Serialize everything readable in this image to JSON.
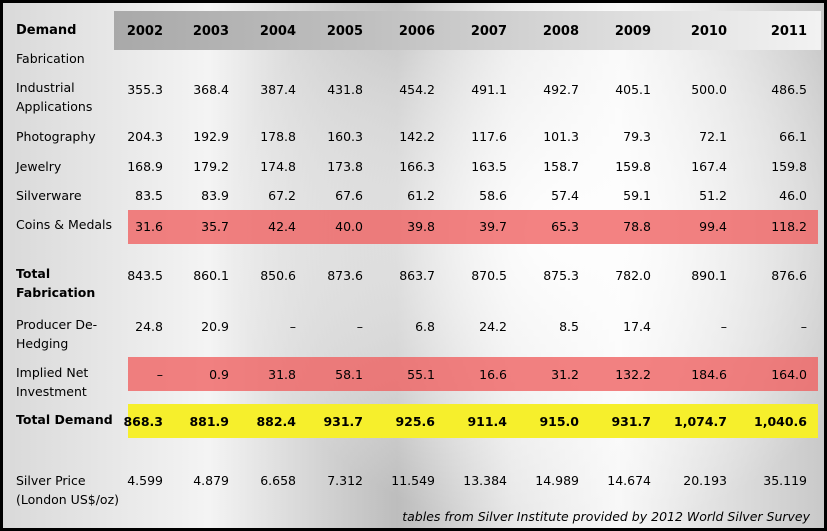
{
  "chart_data": {
    "type": "table",
    "corner_header": "Demand",
    "section_label": "Fabrication",
    "years": [
      "2002",
      "2003",
      "2004",
      "2005",
      "2006",
      "2007",
      "2008",
      "2009",
      "2010",
      "2011"
    ],
    "rows": [
      {
        "label": "Industrial Applications",
        "values": [
          "355.3",
          "368.4",
          "387.4",
          "431.8",
          "454.2",
          "491.1",
          "492.7",
          "405.1",
          "500.0",
          "486.5"
        ]
      },
      {
        "label": "Photography",
        "values": [
          "204.3",
          "192.9",
          "178.8",
          "160.3",
          "142.2",
          "117.6",
          "101.3",
          "79.3",
          "72.1",
          "66.1"
        ]
      },
      {
        "label": "Jewelry",
        "values": [
          "168.9",
          "179.2",
          "174.8",
          "173.8",
          "166.3",
          "163.5",
          "158.7",
          "159.8",
          "167.4",
          "159.8"
        ]
      },
      {
        "label": "Silverware",
        "values": [
          "83.5",
          "83.9",
          "67.2",
          "67.6",
          "61.2",
          "58.6",
          "57.4",
          "59.1",
          "51.2",
          "46.0"
        ]
      },
      {
        "label": "Coins & Medals",
        "values": [
          "31.6",
          "35.7",
          "42.4",
          "40.0",
          "39.8",
          "39.7",
          "65.3",
          "78.8",
          "99.4",
          "118.2"
        ],
        "highlight": "red"
      },
      {
        "label": "Total Fabrication",
        "values": [
          "843.5",
          "860.1",
          "850.6",
          "873.6",
          "863.7",
          "870.5",
          "875.3",
          "782.0",
          "890.1",
          "876.6"
        ],
        "bold_label": true
      },
      {
        "label": "Producer De-Hedging",
        "values": [
          "24.8",
          "20.9",
          "–",
          "–",
          "6.8",
          "24.2",
          "8.5",
          "17.4",
          "–",
          "–"
        ]
      },
      {
        "label": "Implied Net Investment",
        "values": [
          "–",
          "0.9",
          "31.8",
          "58.1",
          "55.1",
          "16.6",
          "31.2",
          "132.2",
          "184.6",
          "164.0"
        ],
        "highlight": "red"
      },
      {
        "label": "Total Demand",
        "values": [
          "868.3",
          "881.9",
          "882.4",
          "931.7",
          "925.6",
          "911.4",
          "915.0",
          "931.7",
          "1,074.7",
          "1,040.6"
        ],
        "highlight": "yellow",
        "bold_label": true,
        "bold_values": true
      },
      {
        "label": "Silver Price (London US$/oz)",
        "values": [
          "4.599",
          "4.879",
          "6.658",
          "7.312",
          "11.549",
          "13.384",
          "14.989",
          "14.674",
          "20.193",
          "35.119"
        ]
      }
    ],
    "colors": {
      "red_highlight": "#f05f5f",
      "yellow_highlight": "#f6ef2c"
    }
  },
  "caption": "tables from Silver Institute provided by 2012 World Silver Survey"
}
